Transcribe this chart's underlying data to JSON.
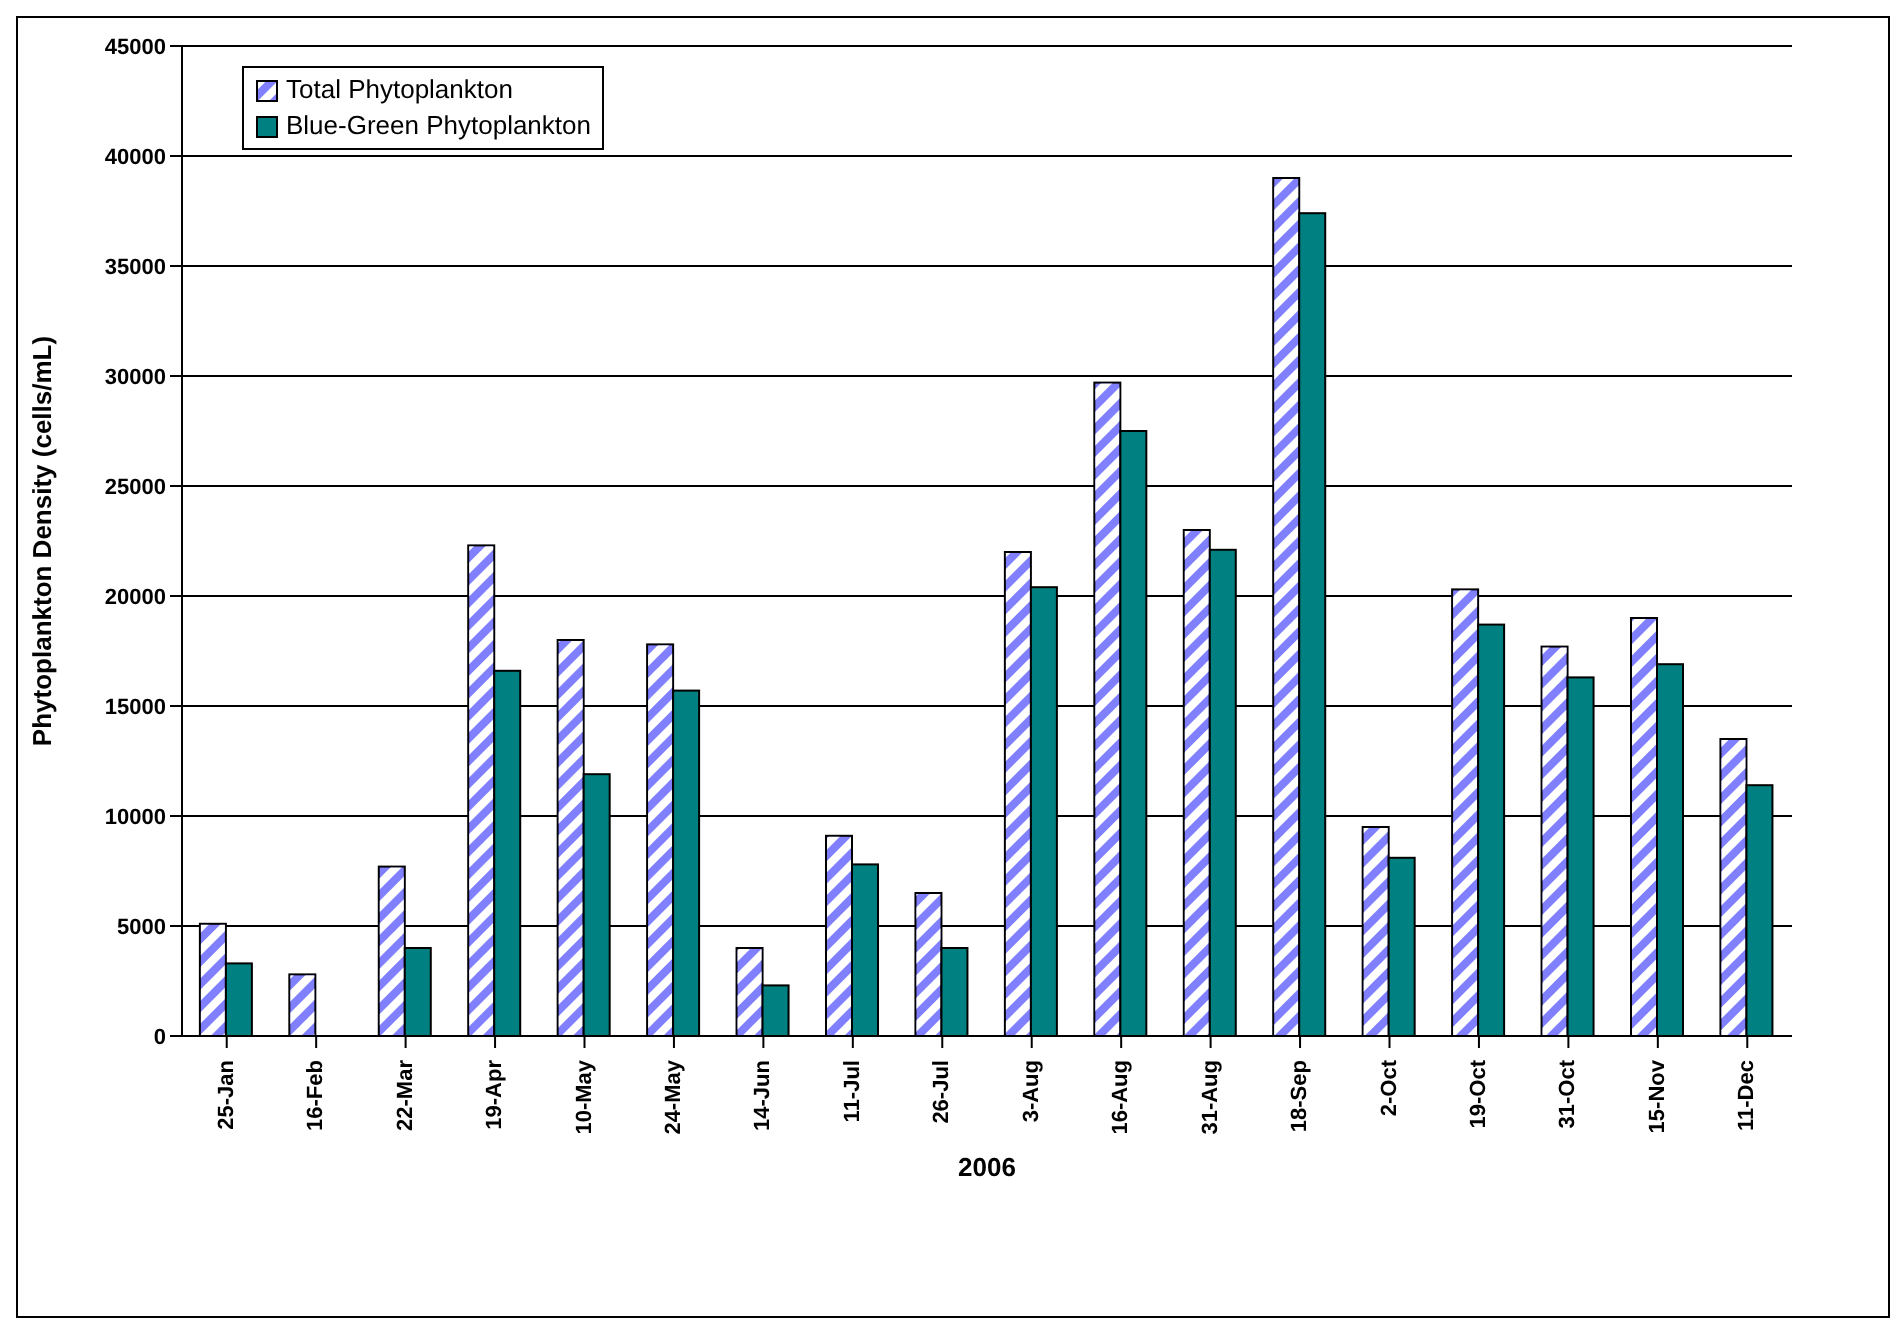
{
  "chart_data": {
    "type": "bar",
    "xlabel": "2006",
    "ylabel": "Phytoplankton Density (cells/mL)",
    "categories": [
      "25-Jan",
      "16-Feb",
      "22-Mar",
      "19-Apr",
      "10-May",
      "24-May",
      "14-Jun",
      "11-Jul",
      "26-Jul",
      "3-Aug",
      "16-Aug",
      "31-Aug",
      "18-Sep",
      "2-Oct",
      "19-Oct",
      "31-Oct",
      "15-Nov",
      "11-Dec"
    ],
    "series": [
      {
        "name": "Total Phytoplankton",
        "color": "#8080ff",
        "values": [
          5100,
          2800,
          7700,
          22300,
          18000,
          17800,
          4000,
          9100,
          6500,
          22000,
          29700,
          23000,
          39000,
          9500,
          20300,
          17700,
          19000,
          13500
        ]
      },
      {
        "name": "Blue-Green Phytoplankton",
        "color": "#008080",
        "values": [
          3300,
          null,
          4000,
          16600,
          11900,
          15700,
          2300,
          7800,
          4000,
          20400,
          27500,
          22100,
          37400,
          8100,
          18700,
          16300,
          16900,
          11400
        ]
      }
    ],
    "ylim": [
      0,
      45000
    ],
    "yticks": [
      0,
      5000,
      10000,
      15000,
      20000,
      25000,
      30000,
      35000,
      40000,
      45000
    ],
    "grid": "y",
    "legend": "top left"
  }
}
